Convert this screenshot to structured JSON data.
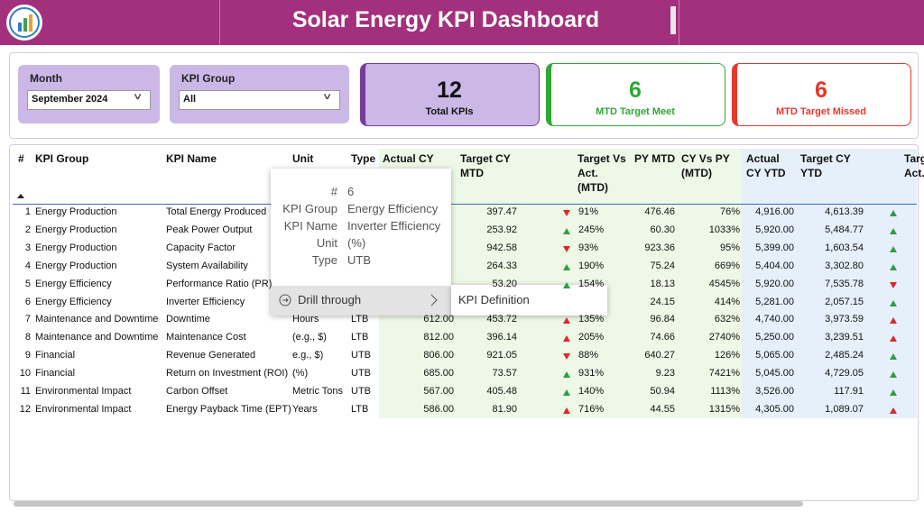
{
  "header": {
    "title": "Solar Energy KPI Dashboard"
  },
  "filters": [
    {
      "label": "Month",
      "value": "September 2024"
    },
    {
      "label": "KPI Group",
      "value": "All"
    }
  ],
  "cards": [
    {
      "value": 12,
      "label": "Total KPIs"
    },
    {
      "value": 6,
      "label": "MTD Target Meet"
    },
    {
      "value": 6,
      "label": "MTD Target Missed"
    }
  ],
  "table": {
    "columns": [
      "#",
      "KPI Group",
      "KPI Name",
      "Unit",
      "Type",
      "Actual CY",
      "Target CY MTD",
      "Target Vs Act. (MTD)",
      "PY MTD",
      "CY Vs PY (MTD)",
      "Actual CY YTD",
      "Target CY YTD",
      "Target Vs Act. (YTD)"
    ],
    "rows": [
      [
        1,
        "Energy Production",
        "Total Energy Produced",
        null,
        null,
        null,
        "397.47",
        "down-red",
        "91%",
        "476.46",
        "76%",
        "4,916.00",
        "4,613.39",
        "up-green"
      ],
      [
        2,
        "Energy Production",
        "Peak Power Output",
        null,
        null,
        null,
        "253.92",
        "up-green",
        "245%",
        "60.30",
        "1033%",
        "5,920.00",
        "5,484.77",
        "up-green"
      ],
      [
        3,
        "Energy Production",
        "Capacity Factor",
        null,
        null,
        null,
        "942.58",
        "down-red",
        "93%",
        "923.36",
        "95%",
        "5,399.00",
        "1,603.54",
        "up-green"
      ],
      [
        4,
        "Energy Production",
        "System Availability",
        null,
        null,
        null,
        "264.33",
        "up-green",
        "190%",
        "75.24",
        "669%",
        "5,404.00",
        "3,302.80",
        "up-green"
      ],
      [
        5,
        "Energy Efficiency",
        "Performance Ratio (PR)",
        null,
        null,
        null,
        "53.20",
        "up-green",
        "154%",
        "18.13",
        "4545%",
        "5,920.00",
        "7,535.78",
        "down-red"
      ],
      [
        6,
        "Energy Efficiency",
        "Inverter Efficiency",
        null,
        null,
        null,
        null,
        null,
        null,
        "24.15",
        "414%",
        "5,281.00",
        "2,057.15",
        "up-green"
      ],
      [
        7,
        "Maintenance and Downtime",
        "Downtime",
        "Hours",
        "LTB",
        "612.00",
        "453.72",
        "up-red",
        "135%",
        "96.84",
        "632%",
        "4,740.00",
        "3,973.59",
        "up-red"
      ],
      [
        8,
        "Maintenance and Downtime",
        "Maintenance Cost",
        "(e.g., $)",
        "LTB",
        "812.00",
        "396.14",
        "up-red",
        "205%",
        "74.66",
        "2740%",
        "5,250.00",
        "3,239.51",
        "up-red"
      ],
      [
        9,
        "Financial",
        "Revenue Generated",
        "e.g., $)",
        "UTB",
        "806.00",
        "921.05",
        "down-red",
        "88%",
        "640.27",
        "126%",
        "5,065.00",
        "2,485.24",
        "up-green"
      ],
      [
        10,
        "Financial",
        "Return on Investment (ROI)",
        "(%)",
        "UTB",
        "685.00",
        "73.57",
        "up-green",
        "931%",
        "9.23",
        "7421%",
        "5,045.00",
        "4,729.05",
        "up-green"
      ],
      [
        11,
        "Environmental Impact",
        "Carbon Offset",
        "Metric Tons",
        "UTB",
        "567.00",
        "405.48",
        "up-green",
        "140%",
        "50.94",
        "1113%",
        "3,526.00",
        "117.91",
        "up-green"
      ],
      [
        12,
        "Environmental Impact",
        "Energy Payback Time (EPT)",
        "Years",
        "LTB",
        "586.00",
        "81.90",
        "up-red",
        "716%",
        "44.55",
        "1315%",
        "4,305.00",
        "1,089.07",
        "up-red"
      ]
    ]
  },
  "tooltip": {
    "fields": [
      {
        "label": "#",
        "value": 6
      },
      {
        "label": "KPI Group",
        "value": "Energy Efficiency"
      },
      {
        "label": "KPI Name",
        "value": "Inverter Efficiency"
      },
      {
        "label": "Unit",
        "value": "(%)"
      },
      {
        "label": "Type",
        "value": "UTB"
      }
    ]
  },
  "context_menu": {
    "item": "Drill through",
    "submenu": "KPI Definition"
  }
}
